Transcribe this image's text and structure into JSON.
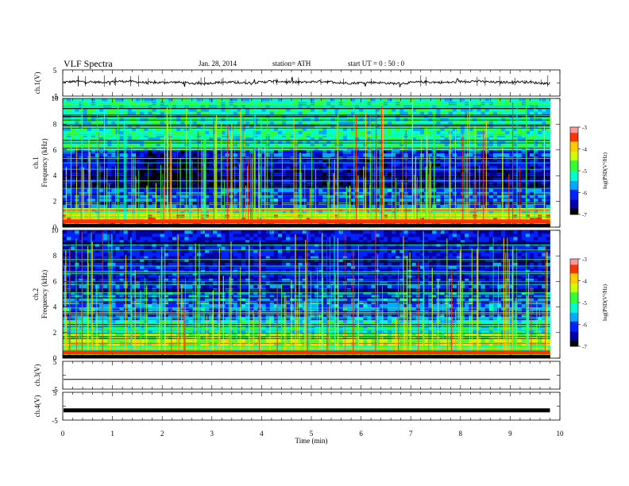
{
  "header": {
    "title": "VLF  Spectra",
    "date": "Jan. 28, 2014",
    "station": "station= ATH",
    "start": "start  UT  =    0  : 50 : 0"
  },
  "chart_data": [
    {
      "type": "line",
      "ylabel": "ch.1(V)",
      "ylim": [
        -5,
        5
      ],
      "yticks": [
        "5",
        "-5"
      ],
      "xlim": [
        0,
        10
      ],
      "x_end": 9.8,
      "series": [
        {
          "values_description_level": 0.2
        }
      ]
    },
    {
      "type": "heatmap",
      "ylabel": "Frequency (kHz)",
      "channel": "ch.1",
      "ylim": [
        0,
        10
      ],
      "yticks": [
        "0",
        "2",
        "4",
        "6",
        "8",
        "10"
      ],
      "xlim": [
        0,
        10
      ],
      "x_end": 9.8,
      "colorbar": {
        "label": "log(PSD(V²/Hz)",
        "range": [
          -7,
          -3
        ],
        "ticks": [
          "-3",
          "-4",
          "-5",
          "-6",
          "-7"
        ]
      }
    },
    {
      "type": "heatmap",
      "ylabel": "Frequency (kHz)",
      "channel": "ch.2",
      "ylim": [
        0,
        10
      ],
      "yticks": [
        "0",
        "2",
        "4",
        "6",
        "8",
        "10"
      ],
      "xlim": [
        0,
        10
      ],
      "x_end": 9.8,
      "colorbar": {
        "label": "log(PSD(V²/Hz)",
        "range": [
          -7,
          -3
        ],
        "ticks": [
          "-3",
          "-4",
          "-5",
          "-6",
          "-7"
        ]
      }
    },
    {
      "type": "line",
      "ylabel": "ch.3(V)",
      "ylim": [
        -5,
        5
      ],
      "yticks": [
        "5",
        "-5"
      ],
      "xlim": [
        0,
        10
      ],
      "x_end": 9.8,
      "series": [
        {
          "level": -1.5
        }
      ]
    },
    {
      "type": "line",
      "ylabel": "ch.4(V)",
      "ylim": [
        -5,
        5
      ],
      "yticks": [
        "5",
        "-5"
      ],
      "xlim": [
        0,
        10
      ],
      "x_end": 9.8,
      "series": [
        {
          "level": -1.5
        }
      ]
    }
  ],
  "xaxis": {
    "label": "Time  (min)",
    "ticks": [
      "0",
      "1",
      "2",
      "3",
      "4",
      "5",
      "6",
      "7",
      "8",
      "9",
      "10"
    ]
  },
  "colors": {
    "colormap": [
      "#000000",
      "#0000aa",
      "#0022ff",
      "#00aaff",
      "#00ffcc",
      "#33ff33",
      "#ccff00",
      "#ffcc00",
      "#ff3300",
      "#ff9999"
    ]
  }
}
